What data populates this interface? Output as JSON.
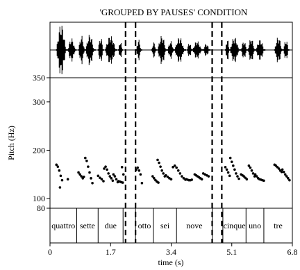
{
  "chart_data": {
    "type": "scatter",
    "title": "'GROUPED BY PAUSES' CONDITION",
    "xlabel": "time (s)",
    "ylabel": "Pitch (Hz)",
    "xlim": [
      0,
      6.8
    ],
    "ylim": [
      80,
      350
    ],
    "x_ticks": [
      "0",
      "1.7",
      "3.4",
      "5.1",
      "6.8"
    ],
    "x_tick_values": [
      0,
      1.7,
      3.4,
      5.1,
      6.8
    ],
    "y_ticks": [
      "80",
      "100",
      "200",
      "300",
      "350"
    ],
    "y_tick_values": [
      80,
      100,
      200,
      300,
      350
    ],
    "words": [
      {
        "label": "quattro",
        "start": 0.0,
        "end": 0.75
      },
      {
        "label": "sette",
        "start": 0.75,
        "end": 1.35
      },
      {
        "label": "due",
        "start": 1.35,
        "end": 2.05
      },
      {
        "label": "otto",
        "start": 2.4,
        "end": 2.9
      },
      {
        "label": "sei",
        "start": 2.9,
        "end": 3.55
      },
      {
        "label": "nove",
        "start": 3.55,
        "end": 4.55
      },
      {
        "label": "cinque",
        "start": 4.85,
        "end": 5.5
      },
      {
        "label": "uno",
        "start": 5.5,
        "end": 6.0
      },
      {
        "label": "tre",
        "start": 6.0,
        "end": 6.8
      }
    ],
    "pause_boundaries": [
      2.12,
      2.4,
      4.55,
      4.82
    ],
    "pitch_contours": [
      {
        "x": [
          0.18,
          0.22,
          0.26,
          0.3,
          0.34
        ],
        "y": [
          170,
          166,
          158,
          147,
          138
        ]
      },
      {
        "x": [
          0.28
        ],
        "y": [
          123
        ]
      },
      {
        "x": [
          0.5
        ],
        "y": [
          140
        ]
      },
      {
        "x": [
          0.8,
          0.84,
          0.88,
          0.92
        ],
        "y": [
          154,
          150,
          146,
          142
        ]
      },
      {
        "x": [
          0.95
        ],
        "y": [
          145
        ]
      },
      {
        "x": [
          0.99,
          1.03,
          1.07,
          1.11,
          1.15,
          1.19
        ],
        "y": [
          184,
          178,
          166,
          154,
          142,
          132
        ]
      },
      {
        "x": [
          1.35,
          1.4,
          1.45,
          1.5
        ],
        "y": [
          147,
          143,
          140,
          136
        ]
      },
      {
        "x": [
          1.52,
          1.56,
          1.6,
          1.64,
          1.68,
          1.72,
          1.76
        ],
        "y": [
          162,
          166,
          160,
          152,
          146,
          142,
          137
        ]
      },
      {
        "x": [
          1.78,
          1.82,
          1.86,
          1.9
        ],
        "y": [
          150,
          146,
          140,
          134
        ]
      },
      {
        "x": [
          1.92,
          1.96,
          2.0,
          2.04
        ],
        "y": [
          136,
          135,
          134,
          133
        ]
      },
      {
        "x": [
          2.02,
          2.06
        ],
        "y": [
          165,
          150
        ]
      },
      {
        "x": [
          2.42,
          2.46,
          2.5,
          2.54
        ],
        "y": [
          160,
          164,
          158,
          150
        ]
      },
      {
        "x": [
          2.58
        ],
        "y": [
          132
        ]
      },
      {
        "x": [
          2.88,
          2.92,
          2.96,
          3.0,
          3.04
        ],
        "y": [
          146,
          142,
          138,
          135,
          133
        ]
      },
      {
        "x": [
          3.02,
          3.06,
          3.1,
          3.14,
          3.18,
          3.22
        ],
        "y": [
          180,
          174,
          166,
          158,
          152,
          146
        ]
      },
      {
        "x": [
          3.25,
          3.3,
          3.35,
          3.4
        ],
        "y": [
          148,
          145,
          142,
          140
        ]
      },
      {
        "x": [
          3.45,
          3.5,
          3.55,
          3.6,
          3.65,
          3.7,
          3.75,
          3.8
        ],
        "y": [
          165,
          168,
          164,
          158,
          152,
          146,
          142,
          139
        ]
      },
      {
        "x": [
          3.82,
          3.86,
          3.9,
          3.94,
          3.98
        ],
        "y": [
          140,
          139,
          138,
          138,
          139
        ]
      },
      {
        "x": [
          4.06,
          4.1,
          4.14,
          4.18,
          4.22,
          4.26
        ],
        "y": [
          150,
          148,
          146,
          144,
          142,
          140
        ]
      },
      {
        "x": [
          4.3,
          4.35,
          4.4,
          4.45
        ],
        "y": [
          152,
          150,
          148,
          146
        ]
      },
      {
        "x": [
          4.92,
          4.96,
          5.0,
          5.04
        ],
        "y": [
          165,
          160,
          154,
          147
        ]
      },
      {
        "x": [
          5.06,
          5.1,
          5.14,
          5.18,
          5.22,
          5.26,
          5.3
        ],
        "y": [
          184,
          176,
          168,
          160,
          152,
          146,
          141
        ]
      },
      {
        "x": [
          5.36,
          5.4,
          5.44,
          5.48,
          5.52
        ],
        "y": [
          150,
          148,
          146,
          143,
          140
        ]
      },
      {
        "x": [
          5.58,
          5.62,
          5.66,
          5.7,
          5.74
        ],
        "y": [
          168,
          164,
          158,
          152,
          146
        ]
      },
      {
        "x": [
          5.76,
          5.8,
          5.84,
          5.88,
          5.92,
          5.96,
          6.0
        ],
        "y": [
          150,
          146,
          142,
          140,
          139,
          138,
          137
        ]
      },
      {
        "x": [
          6.3,
          6.34,
          6.38,
          6.42,
          6.46,
          6.5
        ],
        "y": [
          170,
          168,
          165,
          162,
          158,
          155
        ]
      },
      {
        "x": [
          6.52,
          6.56,
          6.6,
          6.64,
          6.68,
          6.72
        ],
        "y": [
          160,
          155,
          150,
          146,
          142,
          138
        ]
      }
    ]
  }
}
